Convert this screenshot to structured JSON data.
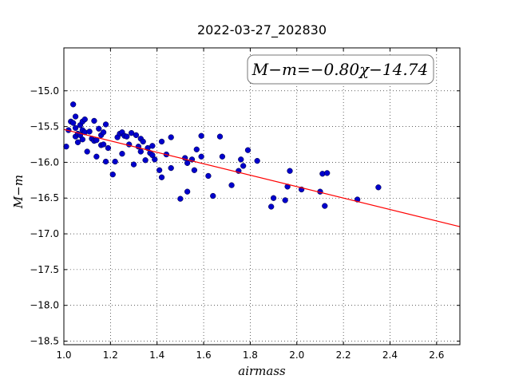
{
  "chart_data": {
    "type": "scatter",
    "title": "2022-03-27_202830",
    "xlabel": "airmass",
    "ylabel": "M−m",
    "xlim": [
      1.0,
      2.7
    ],
    "ylim": [
      -18.55,
      -14.4
    ],
    "xticks": [
      1.0,
      1.2,
      1.4,
      1.6,
      1.8,
      2.0,
      2.2,
      2.4,
      2.6
    ],
    "xtick_labels": [
      "1.0",
      "1.2",
      "1.4",
      "1.6",
      "1.8",
      "2.0",
      "2.2",
      "2.4",
      "2.6"
    ],
    "yticks": [
      -15.0,
      -15.5,
      -16.0,
      -16.5,
      -17.0,
      -17.5,
      -18.0,
      -18.5
    ],
    "ytick_labels": [
      "−15.0",
      "−15.5",
      "−16.0",
      "−16.5",
      "−17.0",
      "−17.5",
      "−18.0",
      "−18.5"
    ],
    "grid": true,
    "annotation": "M−m=−0.80χ−14.74",
    "fit": {
      "slope": -0.8,
      "intercept": -14.74,
      "color": "#ff0000"
    },
    "marker_color": "#0000cc",
    "points": [
      [
        1.01,
        -15.78
      ],
      [
        1.02,
        -15.55
      ],
      [
        1.03,
        -15.43
      ],
      [
        1.04,
        -15.19
      ],
      [
        1.04,
        -15.45
      ],
      [
        1.05,
        -15.36
      ],
      [
        1.05,
        -15.52
      ],
      [
        1.05,
        -15.64
      ],
      [
        1.06,
        -15.72
      ],
      [
        1.06,
        -15.6
      ],
      [
        1.07,
        -15.48
      ],
      [
        1.07,
        -15.62
      ],
      [
        1.08,
        -15.68
      ],
      [
        1.08,
        -15.55
      ],
      [
        1.08,
        -15.43
      ],
      [
        1.09,
        -15.4
      ],
      [
        1.09,
        -15.58
      ],
      [
        1.1,
        -15.85
      ],
      [
        1.11,
        -15.57
      ],
      [
        1.12,
        -15.67
      ],
      [
        1.13,
        -15.42
      ],
      [
        1.13,
        -15.7
      ],
      [
        1.14,
        -15.69
      ],
      [
        1.14,
        -15.92
      ],
      [
        1.15,
        -15.53
      ],
      [
        1.16,
        -15.76
      ],
      [
        1.16,
        -15.62
      ],
      [
        1.17,
        -15.58
      ],
      [
        1.17,
        -15.75
      ],
      [
        1.18,
        -15.47
      ],
      [
        1.18,
        -15.99
      ],
      [
        1.19,
        -15.8
      ],
      [
        1.21,
        -16.17
      ],
      [
        1.22,
        -15.99
      ],
      [
        1.23,
        -15.65
      ],
      [
        1.24,
        -15.6
      ],
      [
        1.25,
        -15.58
      ],
      [
        1.25,
        -15.88
      ],
      [
        1.26,
        -15.63
      ],
      [
        1.27,
        -15.64
      ],
      [
        1.28,
        -15.75
      ],
      [
        1.29,
        -15.59
      ],
      [
        1.3,
        -16.03
      ],
      [
        1.31,
        -15.62
      ],
      [
        1.32,
        -15.78
      ],
      [
        1.33,
        -15.67
      ],
      [
        1.33,
        -15.85
      ],
      [
        1.34,
        -15.71
      ],
      [
        1.35,
        -15.97
      ],
      [
        1.36,
        -15.8
      ],
      [
        1.37,
        -15.87
      ],
      [
        1.38,
        -15.9
      ],
      [
        1.38,
        -15.77
      ],
      [
        1.39,
        -15.96
      ],
      [
        1.41,
        -16.11
      ],
      [
        1.42,
        -16.21
      ],
      [
        1.42,
        -15.71
      ],
      [
        1.44,
        -15.89
      ],
      [
        1.46,
        -16.08
      ],
      [
        1.46,
        -15.65
      ],
      [
        1.5,
        -16.51
      ],
      [
        1.52,
        -15.94
      ],
      [
        1.53,
        -16.41
      ],
      [
        1.53,
        -16.01
      ],
      [
        1.55,
        -15.96
      ],
      [
        1.56,
        -16.11
      ],
      [
        1.57,
        -15.82
      ],
      [
        1.59,
        -15.63
      ],
      [
        1.59,
        -15.92
      ],
      [
        1.62,
        -16.19
      ],
      [
        1.64,
        -16.47
      ],
      [
        1.67,
        -15.64
      ],
      [
        1.68,
        -15.92
      ],
      [
        1.72,
        -16.32
      ],
      [
        1.75,
        -16.12
      ],
      [
        1.76,
        -15.96
      ],
      [
        1.77,
        -16.05
      ],
      [
        1.79,
        -15.83
      ],
      [
        1.83,
        -15.98
      ],
      [
        1.89,
        -16.62
      ],
      [
        1.9,
        -16.5
      ],
      [
        1.95,
        -16.53
      ],
      [
        1.96,
        -16.34
      ],
      [
        1.97,
        -16.12
      ],
      [
        2.02,
        -16.38
      ],
      [
        2.1,
        -16.41
      ],
      [
        2.11,
        -16.16
      ],
      [
        2.12,
        -16.61
      ],
      [
        2.13,
        -16.15
      ],
      [
        2.26,
        -16.52
      ],
      [
        2.35,
        -16.35
      ]
    ]
  }
}
